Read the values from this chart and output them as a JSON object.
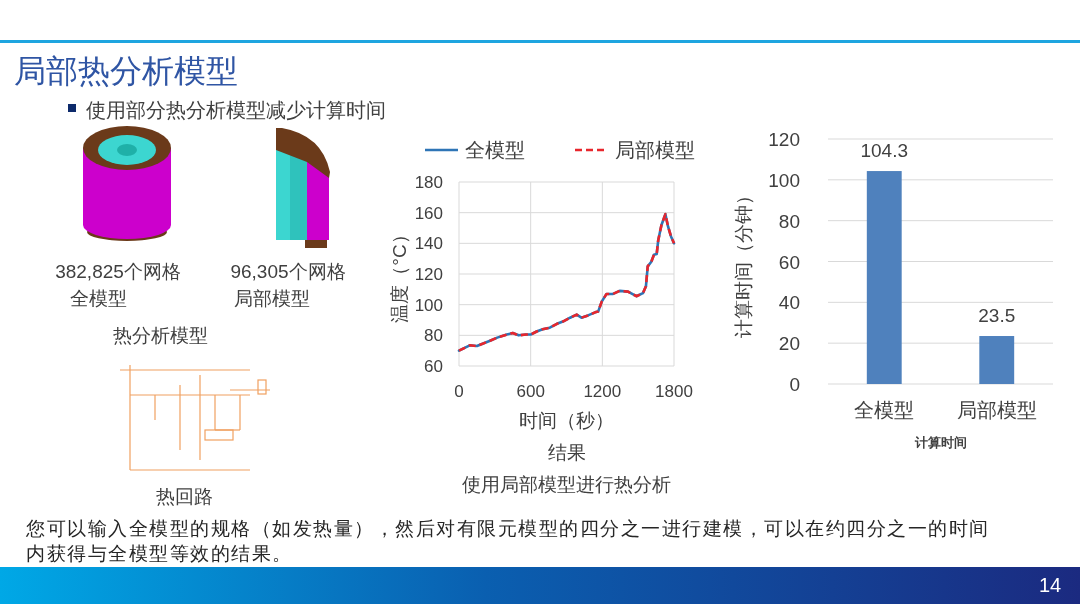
{
  "chart_data": [
    {
      "type": "other",
      "title": "局部热分析模型",
      "annotations": [
        "使用部分热分析模型减少计算时间",
        "382,825个网格",
        "全模型",
        "96,305个网格",
        "局部模型",
        "热分析模型",
        "热回路",
        "您可以输入全模型的规格（如发热量），然后对有限元模型的四分之一进行建模，可以在约四分之一的时间内获得与全模型等效的结果。",
        "14"
      ]
    },
    {
      "type": "line",
      "xlabel": "时间（秒）",
      "ylabel": "温度（°C）",
      "xlim": [
        0,
        1800
      ],
      "xticks": [
        0,
        600,
        1200,
        1800
      ],
      "ylim": [
        60,
        180
      ],
      "yticks": [
        60,
        80,
        100,
        120,
        140,
        160,
        180
      ],
      "grid": true,
      "legend": "top",
      "x": [
        0,
        90,
        150,
        260,
        320,
        400,
        450,
        500,
        560,
        600,
        650,
        700,
        760,
        820,
        870,
        930,
        985,
        1025,
        1080,
        1140,
        1165,
        1195,
        1235,
        1290,
        1345,
        1415,
        1485,
        1540,
        1565,
        1580,
        1610,
        1632,
        1655,
        1668,
        1695,
        1728,
        1750,
        1775,
        1800
      ],
      "series": [
        {
          "name": "全模型",
          "color": "#2e75b6",
          "line_style": "solid",
          "values": [
            70,
            73.5,
            73,
            76.5,
            78.5,
            80.5,
            81.5,
            80,
            80.5,
            80.5,
            82.5,
            84,
            85,
            87.5,
            89,
            91.5,
            93.5,
            91.5,
            93,
            95,
            95.5,
            102,
            107,
            107,
            109,
            108.5,
            105.5,
            107.5,
            112,
            125,
            128,
            132.5,
            133,
            142,
            152,
            159,
            151,
            144.5,
            140
          ]
        },
        {
          "name": "局部模型",
          "color": "#e8262c",
          "line_style": "dashed",
          "values": [
            70,
            73.5,
            73,
            76.5,
            78.5,
            80.5,
            81.5,
            80,
            80.5,
            80.5,
            82.5,
            84,
            85,
            87.5,
            89,
            91.5,
            93.5,
            91.5,
            93,
            95,
            95.5,
            102,
            107,
            107,
            109,
            108.5,
            105.5,
            107.5,
            112,
            125,
            128,
            132.5,
            133,
            142,
            152,
            159,
            151,
            144.5,
            140
          ]
        }
      ],
      "annotations": [
        "结果",
        "使用局部模型进行热分析"
      ]
    },
    {
      "type": "bar",
      "categories": [
        "全模型",
        "局部模型"
      ],
      "values": [
        104.3,
        23.5
      ],
      "color": "#4f81bd",
      "ylim": [
        0,
        120
      ],
      "yticks": [
        0,
        20,
        40,
        60,
        80,
        100,
        120
      ],
      "grid": "y",
      "data_labels": true,
      "ylabel": "计算时间（分钟）",
      "xlabel": "计算时间"
    }
  ]
}
